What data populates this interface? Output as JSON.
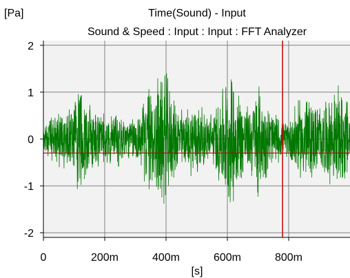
{
  "chart_data": {
    "type": "line",
    "title": "Time(Sound) - Input",
    "subtitle": "Sound & Speed : Input : Input : FFT Analyzer",
    "xlabel": "[s]",
    "ylabel": "[Pa]",
    "x_ticks": [
      "0",
      "200m",
      "400m",
      "600m",
      "800m"
    ],
    "y_ticks": [
      "2",
      "1",
      "0",
      "-1",
      "-2"
    ],
    "xlim": [
      0,
      1.0
    ],
    "ylim": [
      -2.1,
      2.1
    ],
    "grid": true,
    "cursor": {
      "x": 0.78,
      "y": -0.3
    },
    "envelope": {
      "x": [
        0.0,
        0.03,
        0.07,
        0.1,
        0.12,
        0.14,
        0.16,
        0.2,
        0.24,
        0.28,
        0.32,
        0.34,
        0.36,
        0.38,
        0.4,
        0.42,
        0.46,
        0.5,
        0.53,
        0.56,
        0.58,
        0.6,
        0.62,
        0.64,
        0.67,
        0.7,
        0.73,
        0.76,
        0.78,
        0.8,
        0.82,
        0.84,
        0.86,
        0.88,
        0.91,
        0.94,
        0.97,
        1.0
      ],
      "amp": [
        0.25,
        0.55,
        0.75,
        0.9,
        1.4,
        0.85,
        0.9,
        0.55,
        0.7,
        0.45,
        0.7,
        1.25,
        1.2,
        1.6,
        1.55,
        0.95,
        0.65,
        0.95,
        0.55,
        0.7,
        1.2,
        1.45,
        1.55,
        1.1,
        0.7,
        1.35,
        0.8,
        0.6,
        0.35,
        0.45,
        0.85,
        0.9,
        1.1,
        0.85,
        0.8,
        1.05,
        1.2,
        0.9
      ]
    },
    "series": [
      {
        "color": "#007800"
      }
    ]
  },
  "colors": {
    "plot_background": "#f2f2f2",
    "grid": "#808080",
    "axis": "#000000",
    "cursor_vertical": "#c80000",
    "cursor_horizontal": "#c80000"
  }
}
